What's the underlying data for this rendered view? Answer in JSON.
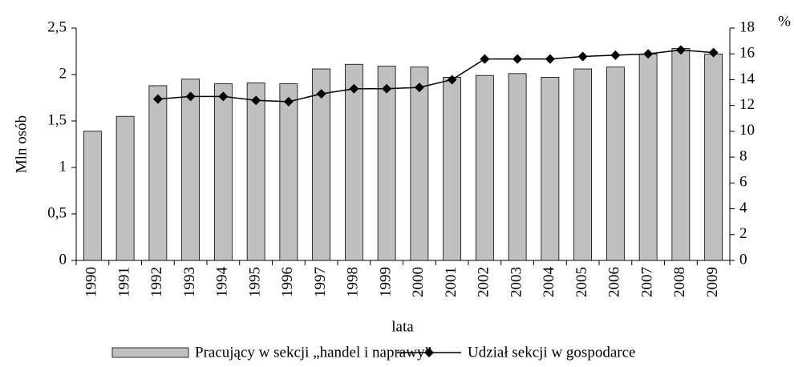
{
  "chart_data": {
    "type": "bar",
    "categories": [
      "1990",
      "1991",
      "1992",
      "1993",
      "1994",
      "1995",
      "1996",
      "1997",
      "1998",
      "1999",
      "2000",
      "2001",
      "2002",
      "2003",
      "2004",
      "2005",
      "2006",
      "2007",
      "2008",
      "2009"
    ],
    "series": [
      {
        "name": "Pracujący w sekcji „handel i naprawy”",
        "type": "bar",
        "color": "#c0c0c0",
        "values": [
          1.39,
          1.55,
          1.88,
          1.95,
          1.9,
          1.91,
          1.9,
          2.06,
          2.11,
          2.09,
          2.08,
          1.97,
          1.99,
          2.01,
          1.97,
          2.06,
          2.08,
          2.22,
          2.28,
          2.22
        ]
      },
      {
        "name": "Udział  sekcji w gospodarce",
        "type": "line",
        "axis": "y2",
        "color": "#000000",
        "values": [
          null,
          null,
          12.5,
          12.7,
          12.7,
          12.4,
          12.3,
          12.9,
          13.3,
          13.3,
          13.4,
          14.0,
          15.6,
          15.6,
          15.6,
          15.8,
          15.9,
          16.0,
          16.3,
          16.1
        ]
      }
    ],
    "xlabel": "lata",
    "ylabel": "Mln osób",
    "y2label": "%",
    "ylim": [
      0,
      2.5
    ],
    "yticks": [
      0,
      {
        "value": 0.5,
        "label": "0,5"
      },
      1,
      {
        "value": 1.5,
        "label": "1,5"
      },
      2,
      {
        "value": 2.5,
        "label": "2,5"
      }
    ],
    "y2lim": [
      0,
      18
    ],
    "y2ticks": [
      0,
      2,
      4,
      6,
      8,
      10,
      12,
      14,
      16,
      18
    ],
    "legend": "bottom"
  }
}
